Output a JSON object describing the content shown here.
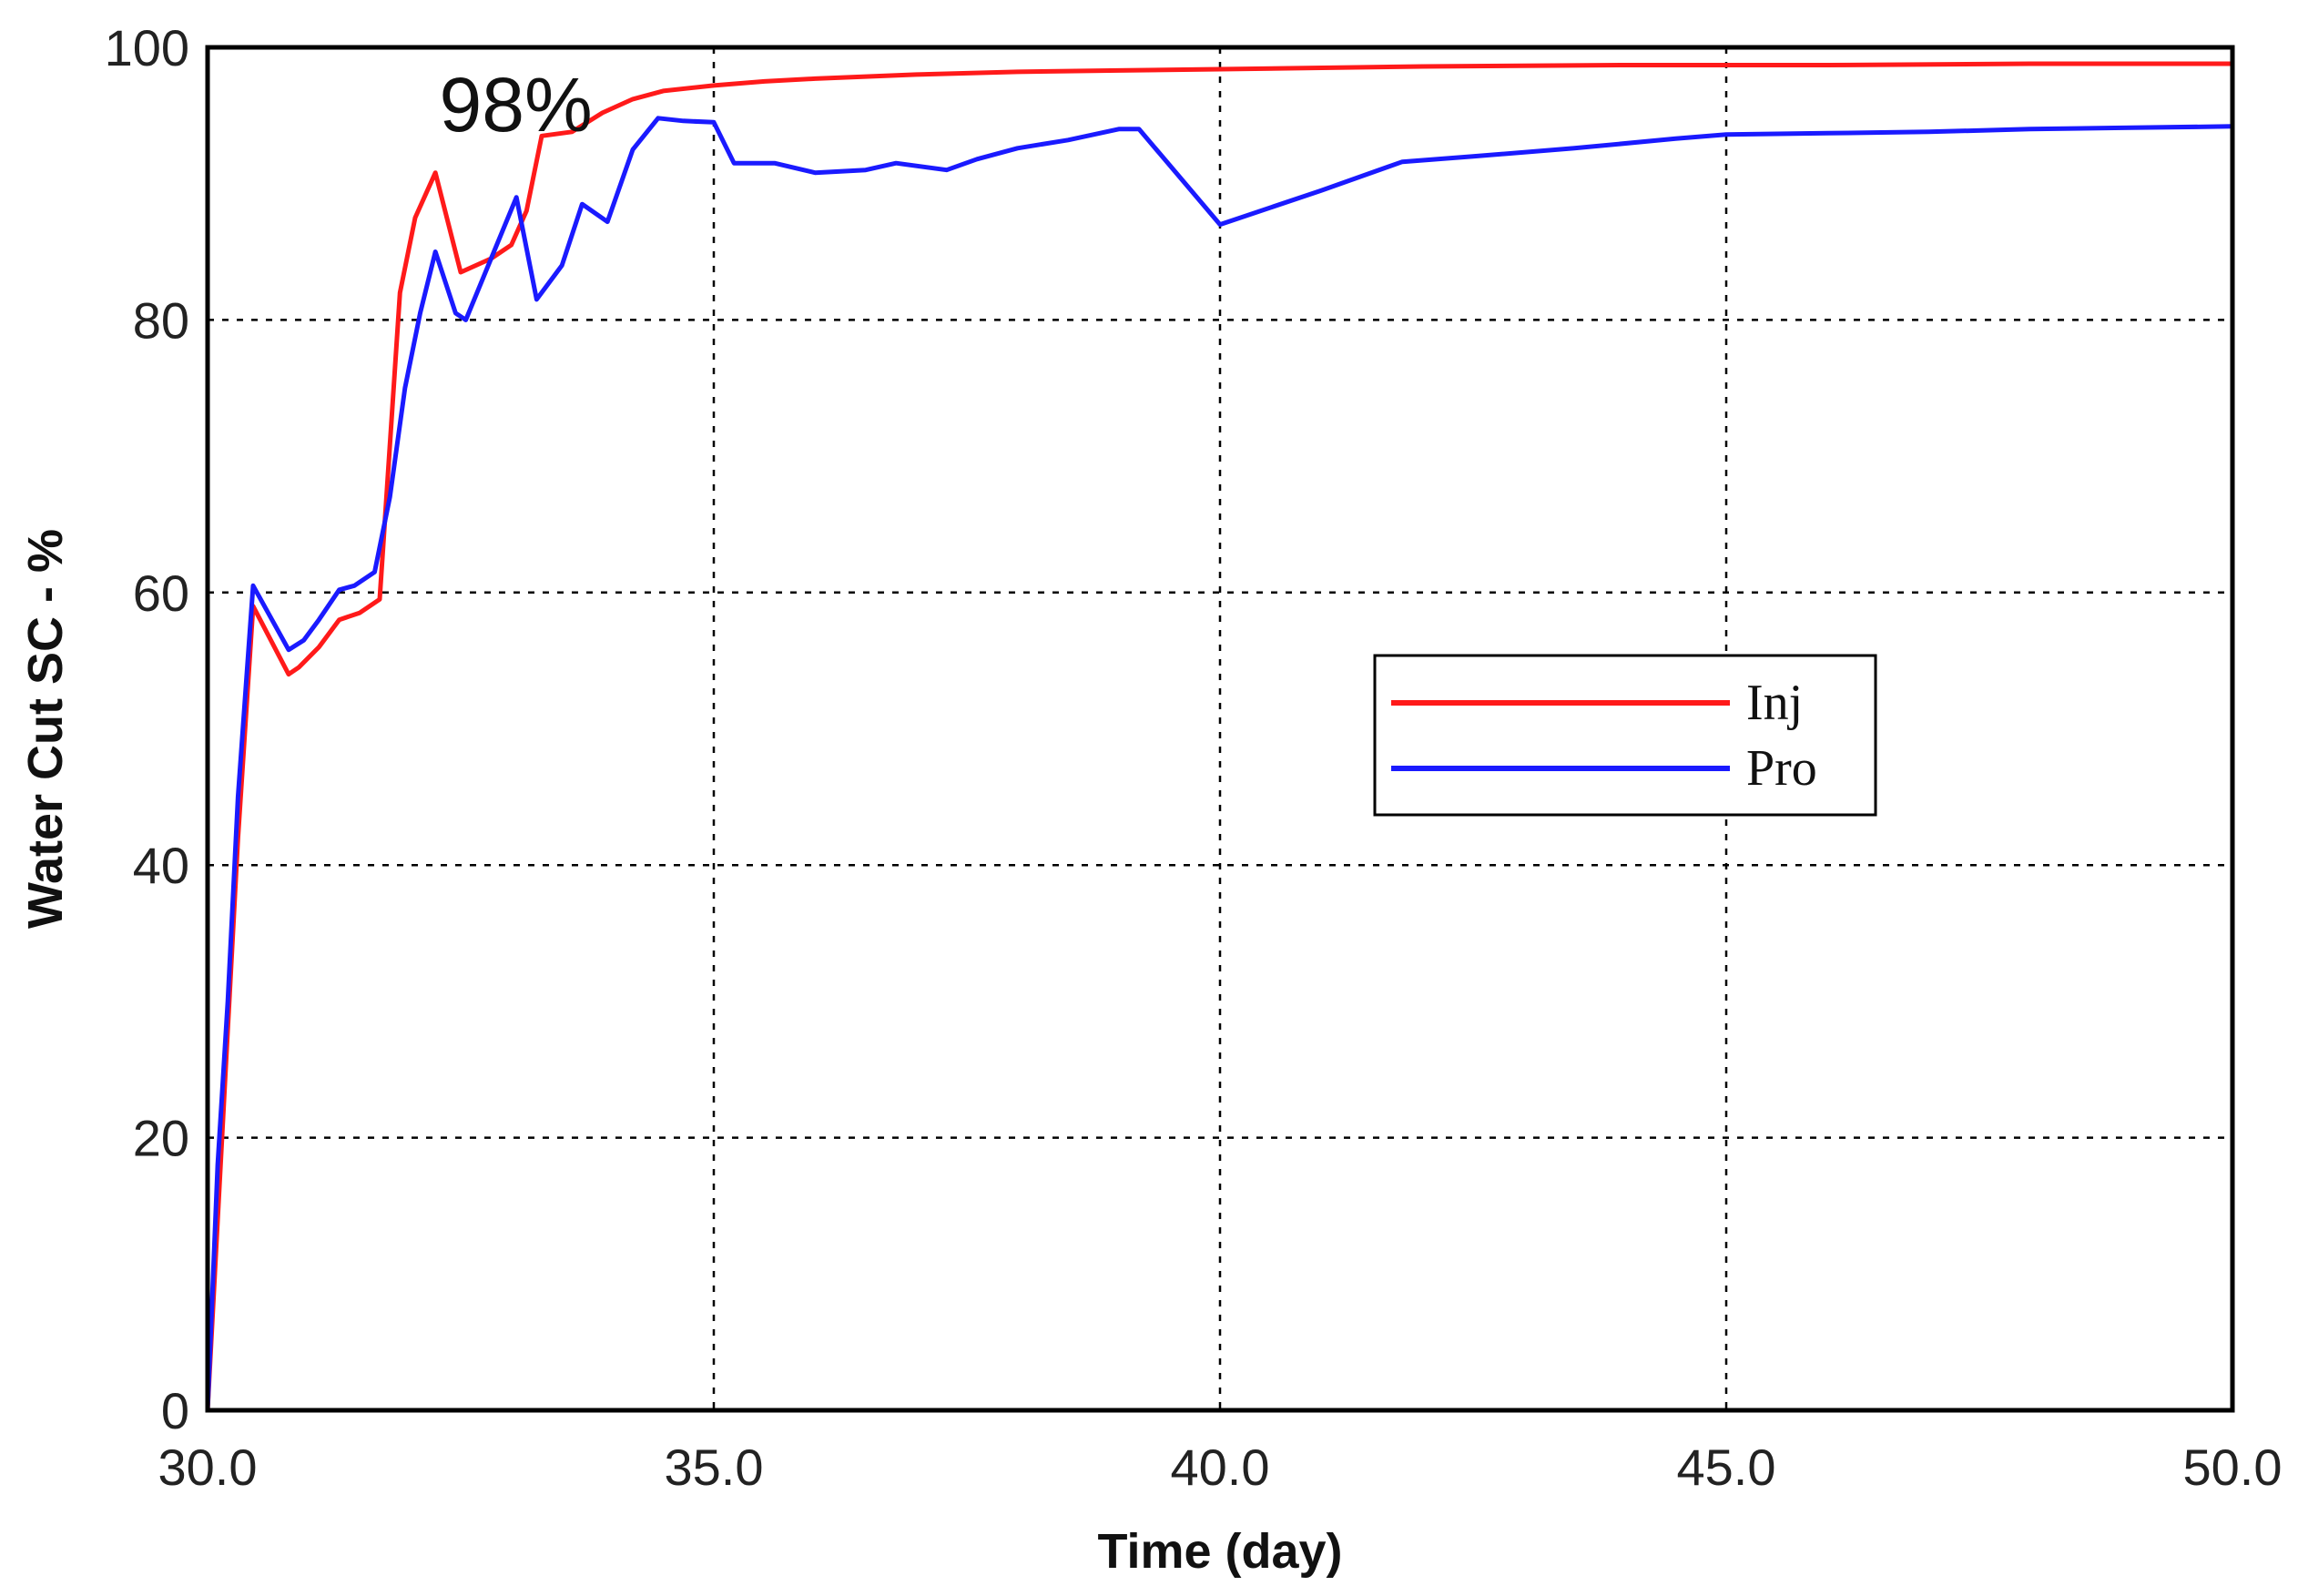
{
  "chart_data": {
    "type": "line",
    "xlabel": "Time (day)",
    "ylabel": "Water Cut SC - %",
    "xlim": [
      30,
      50
    ],
    "ylim": [
      0,
      100
    ],
    "x_ticks": [
      30,
      35,
      40,
      45,
      50
    ],
    "x_tick_labels": [
      "30.0",
      "35.0",
      "40.0",
      "45.0",
      "50.0"
    ],
    "y_ticks": [
      0,
      20,
      40,
      60,
      80,
      100
    ],
    "y_tick_labels": [
      "0",
      "20",
      "40",
      "60",
      "80",
      "100"
    ],
    "grid": true,
    "legend_position": "right-center",
    "annotation": {
      "text": "98%",
      "x": 33.0,
      "y": 94
    },
    "series": [
      {
        "name": "Inj",
        "color": "#ff1a1a",
        "points": [
          [
            30.0,
            0
          ],
          [
            30.1,
            14
          ],
          [
            30.2,
            28
          ],
          [
            30.3,
            42
          ],
          [
            30.45,
            59
          ],
          [
            30.8,
            54
          ],
          [
            30.9,
            54.5
          ],
          [
            31.1,
            56
          ],
          [
            31.3,
            58
          ],
          [
            31.5,
            58.5
          ],
          [
            31.7,
            59.5
          ],
          [
            31.9,
            82
          ],
          [
            32.05,
            87.5
          ],
          [
            32.25,
            90.8
          ],
          [
            32.5,
            83.5
          ],
          [
            32.8,
            84.5
          ],
          [
            33.0,
            85.5
          ],
          [
            33.15,
            88
          ],
          [
            33.3,
            93.5
          ],
          [
            33.6,
            93.8
          ],
          [
            33.9,
            95.2
          ],
          [
            34.2,
            96.2
          ],
          [
            34.5,
            96.8
          ],
          [
            35.0,
            97.2
          ],
          [
            35.5,
            97.5
          ],
          [
            36.0,
            97.7
          ],
          [
            37.0,
            98.0
          ],
          [
            38.0,
            98.2
          ],
          [
            39.0,
            98.3
          ],
          [
            40.0,
            98.4
          ],
          [
            42.0,
            98.6
          ],
          [
            44.0,
            98.7
          ],
          [
            46.0,
            98.7
          ],
          [
            48.0,
            98.8
          ],
          [
            50.0,
            98.8
          ]
        ]
      },
      {
        "name": "Pro",
        "color": "#1a1aff",
        "points": [
          [
            30.0,
            0
          ],
          [
            30.1,
            18
          ],
          [
            30.2,
            30
          ],
          [
            30.3,
            45
          ],
          [
            30.45,
            60.5
          ],
          [
            30.8,
            55.8
          ],
          [
            30.95,
            56.5
          ],
          [
            31.1,
            58
          ],
          [
            31.3,
            60.2
          ],
          [
            31.45,
            60.5
          ],
          [
            31.65,
            61.5
          ],
          [
            31.8,
            67
          ],
          [
            31.95,
            75
          ],
          [
            32.1,
            80.5
          ],
          [
            32.25,
            85
          ],
          [
            32.45,
            80.5
          ],
          [
            32.55,
            80
          ],
          [
            32.8,
            84.5
          ],
          [
            33.05,
            89
          ],
          [
            33.25,
            81.5
          ],
          [
            33.5,
            84
          ],
          [
            33.7,
            88.5
          ],
          [
            33.95,
            87.2
          ],
          [
            34.2,
            92.5
          ],
          [
            34.45,
            94.8
          ],
          [
            34.7,
            94.6
          ],
          [
            35.0,
            94.5
          ],
          [
            35.2,
            91.5
          ],
          [
            35.6,
            91.5
          ],
          [
            36.0,
            90.8
          ],
          [
            36.5,
            91
          ],
          [
            36.8,
            91.5
          ],
          [
            37.3,
            91
          ],
          [
            37.6,
            91.8
          ],
          [
            38.0,
            92.6
          ],
          [
            38.5,
            93.2
          ],
          [
            39.0,
            94
          ],
          [
            39.2,
            94
          ],
          [
            40.0,
            87
          ],
          [
            41.0,
            89.5
          ],
          [
            41.8,
            91.6
          ],
          [
            42.5,
            92
          ],
          [
            43.5,
            92.6
          ],
          [
            44.5,
            93.3
          ],
          [
            45.0,
            93.6
          ],
          [
            46.0,
            93.7
          ],
          [
            47.0,
            93.8
          ],
          [
            48.0,
            94
          ],
          [
            49.0,
            94.1
          ],
          [
            50.0,
            94.2
          ]
        ]
      }
    ]
  }
}
